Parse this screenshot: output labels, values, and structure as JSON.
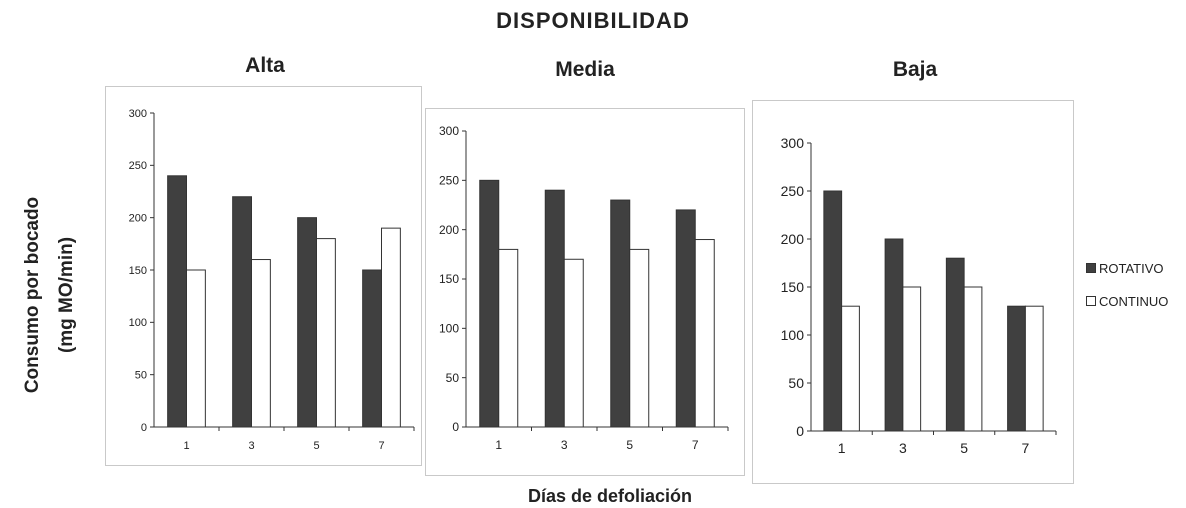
{
  "figure": {
    "title": "DISPONIBILIDAD",
    "ylabel_line1": "Consumo por bocado",
    "ylabel_line2": "(mg MO/min)",
    "xlabel": "Días de defoliación"
  },
  "legend": [
    {
      "name": "ROTATIVO",
      "color": "#404040"
    },
    {
      "name": "CONTINUO",
      "color": "#ffffff"
    }
  ],
  "chart_data": [
    {
      "type": "bar",
      "title": "Alta",
      "categories": [
        "1",
        "3",
        "5",
        "7"
      ],
      "series": [
        {
          "name": "ROTATIVO",
          "values": [
            240,
            220,
            200,
            150
          ]
        },
        {
          "name": "CONTINUO",
          "values": [
            150,
            160,
            180,
            190
          ]
        }
      ],
      "ylim": [
        0,
        300
      ],
      "yticks": [
        "0",
        "50",
        "100",
        "150",
        "200",
        "250",
        "300"
      ],
      "grid": false
    },
    {
      "type": "bar",
      "title": "Media",
      "categories": [
        "1",
        "3",
        "5",
        "7"
      ],
      "series": [
        {
          "name": "ROTATIVO",
          "values": [
            250,
            240,
            230,
            220
          ]
        },
        {
          "name": "CONTINUO",
          "values": [
            180,
            170,
            180,
            190
          ]
        }
      ],
      "ylim": [
        0,
        300
      ],
      "yticks": [
        "0",
        "50",
        "100",
        "150",
        "200",
        "250",
        "300"
      ],
      "grid": false
    },
    {
      "type": "bar",
      "title": "Baja",
      "categories": [
        "1",
        "3",
        "5",
        "7"
      ],
      "series": [
        {
          "name": "ROTATIVO",
          "values": [
            250,
            200,
            180,
            130
          ]
        },
        {
          "name": "CONTINUO",
          "values": [
            130,
            150,
            150,
            130
          ]
        }
      ],
      "ylim": [
        0,
        300
      ],
      "yticks": [
        "0",
        "50",
        "100",
        "150",
        "200",
        "250",
        "300"
      ],
      "grid": false,
      "legend_position": "right"
    }
  ]
}
